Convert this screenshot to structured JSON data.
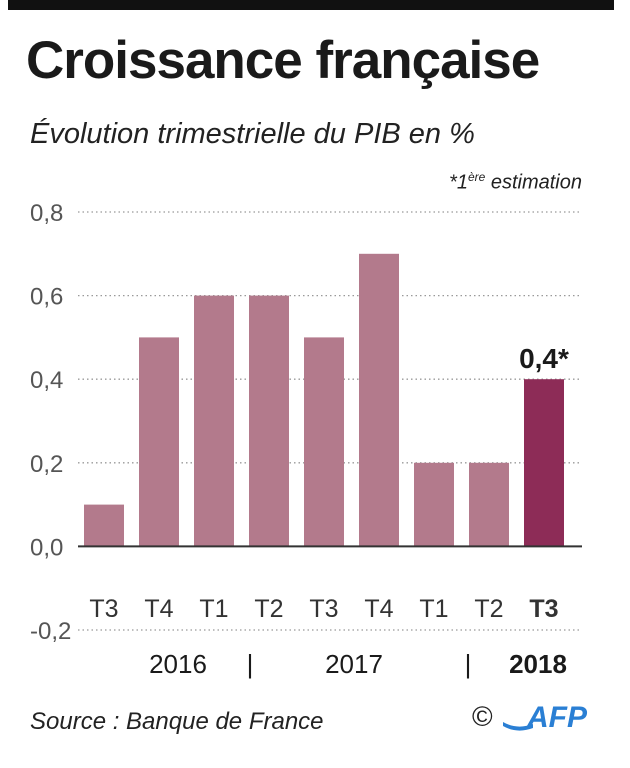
{
  "header": {
    "title": "Croissance française",
    "subtitle": "Évolution trimestrielle du PIB en %",
    "note_prefix": "*1",
    "note_sup": "ère",
    "note_suffix": " estimation"
  },
  "footer": {
    "source": "Source : Banque de France",
    "copyright": "©",
    "logo": "AFP"
  },
  "colors": {
    "bar": "#b37a8c",
    "highlight": "#8d2c57",
    "grid": "#999999"
  },
  "chart_data": {
    "type": "bar",
    "categories": [
      "T3",
      "T4",
      "T1",
      "T2",
      "T3",
      "T4",
      "T1",
      "T2",
      "T3"
    ],
    "years": [
      "2016",
      "|",
      "2017",
      "|",
      "2018"
    ],
    "values": [
      0.1,
      0.5,
      0.6,
      0.6,
      0.5,
      0.7,
      0.2,
      0.2,
      0.4
    ],
    "highlight_index": 8,
    "highlight_label": "0,4*",
    "yticks": [
      "0,8",
      "0,6",
      "0,4",
      "0,2",
      "0,0",
      "-0,2"
    ],
    "ylim": [
      -0.2,
      0.8
    ],
    "grid": true
  }
}
